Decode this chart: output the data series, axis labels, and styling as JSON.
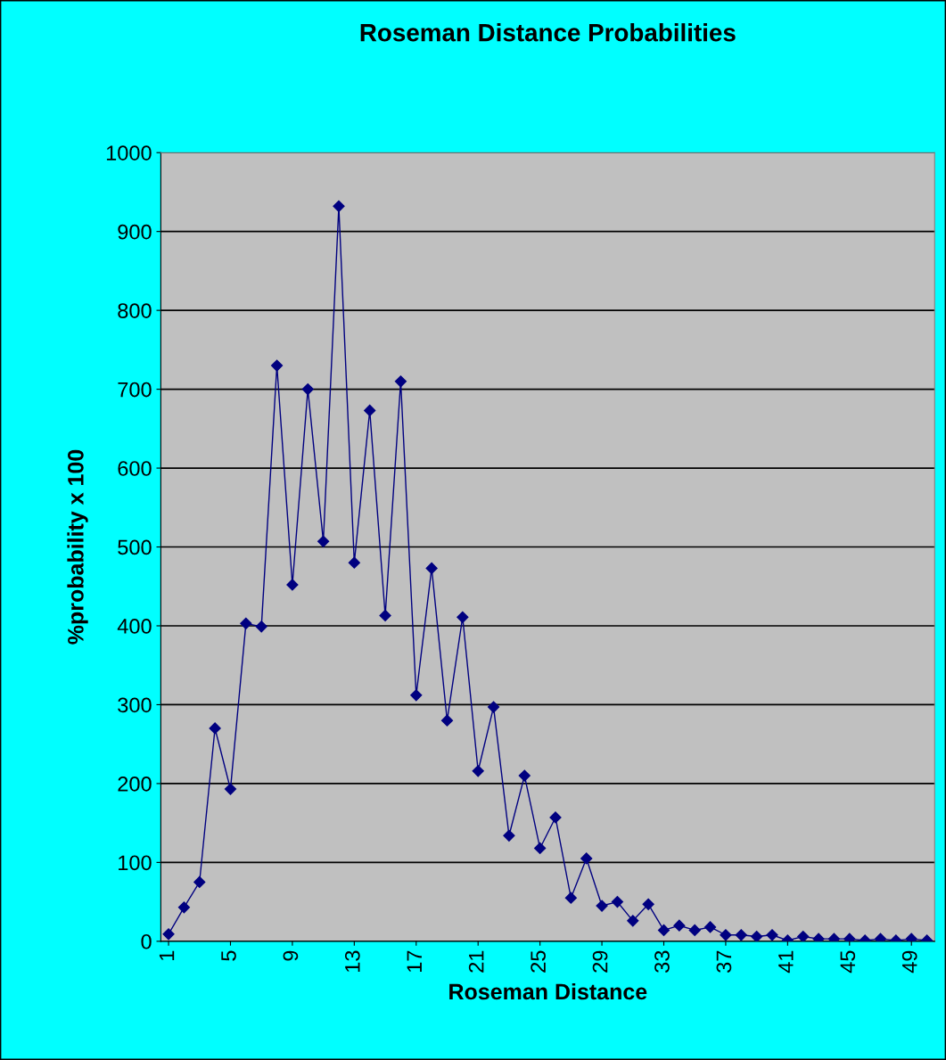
{
  "chart_data": {
    "type": "line",
    "title": "Roseman Distance Probabilities",
    "xlabel": "Roseman Distance",
    "ylabel": "%probability x 100",
    "categories": [
      "1",
      null,
      null,
      null,
      "5",
      null,
      null,
      null,
      "9",
      null,
      null,
      null,
      "13",
      null,
      null,
      null,
      "17",
      null,
      null,
      null,
      "21",
      null,
      null,
      null,
      "25",
      null,
      null,
      null,
      "29",
      null,
      null,
      null,
      "33",
      null,
      null,
      null,
      "37",
      null,
      null,
      null,
      "41",
      null,
      null,
      null,
      "45",
      null,
      null,
      null,
      "49",
      null
    ],
    "series": [
      {
        "color": "#000080",
        "values": [
          9,
          43,
          75,
          270,
          193,
          403,
          399,
          730,
          452,
          700,
          507,
          932,
          480,
          673,
          413,
          710,
          312,
          473,
          280,
          411,
          216,
          297,
          134,
          210,
          118,
          157,
          55,
          105,
          45,
          50,
          26,
          47,
          14,
          20,
          14,
          18,
          8,
          8,
          6,
          8,
          1,
          6,
          3,
          3,
          3,
          1,
          3,
          1,
          3,
          1
        ]
      }
    ],
    "ylim": [
      0,
      1000
    ],
    "yticks": [
      0,
      100,
      200,
      300,
      400,
      500,
      600,
      700,
      800,
      900,
      1000
    ],
    "grid": "y",
    "marker": "diamond",
    "line_style": "solid",
    "legend": false
  }
}
